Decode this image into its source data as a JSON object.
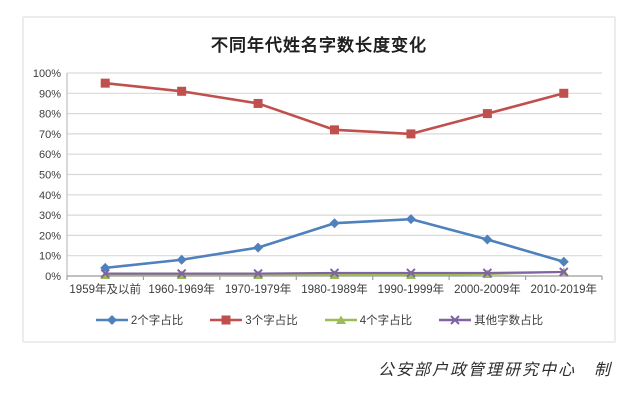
{
  "chart": {
    "title": "不同年代姓名字数长度变化"
  },
  "footer": {
    "credit": "公安部户政管理研究中心　制"
  },
  "chart_data": {
    "type": "line",
    "title": "不同年代姓名字数长度变化",
    "categories": [
      "1959年及以前",
      "1960-1969年",
      "1970-1979年",
      "1980-1989年",
      "1990-1999年",
      "2000-2009年",
      "2010-2019年"
    ],
    "series": [
      {
        "name": "2个字占比",
        "marker": "diamond",
        "color": "#4f81bd",
        "values": [
          4,
          8,
          14,
          26,
          28,
          18,
          7
        ]
      },
      {
        "name": "3个字占比",
        "marker": "square",
        "color": "#c0504d",
        "values": [
          95,
          91,
          85,
          72,
          70,
          80,
          90
        ]
      },
      {
        "name": "4个字占比",
        "marker": "triangle",
        "color": "#9bbb59",
        "values": [
          0.5,
          0.5,
          0.5,
          0.5,
          0.5,
          1,
          2
        ]
      },
      {
        "name": "其他字数占比",
        "marker": "x",
        "color": "#8064a2",
        "values": [
          1.2,
          1.2,
          1.2,
          1.5,
          1.5,
          1.5,
          2
        ]
      }
    ],
    "xlabel": "",
    "ylabel": "",
    "ylim": [
      0,
      100
    ],
    "y_tick_step": 10,
    "y_tick_labels": [
      "0%",
      "10%",
      "20%",
      "30%",
      "40%",
      "50%",
      "60%",
      "70%",
      "80%",
      "90%",
      "100%"
    ],
    "grid": true,
    "legend_position": "bottom",
    "colors": {
      "gridline": "#d9d9d9",
      "axis": "#bdbdbd",
      "tick_text": "#3d3d3d"
    }
  }
}
